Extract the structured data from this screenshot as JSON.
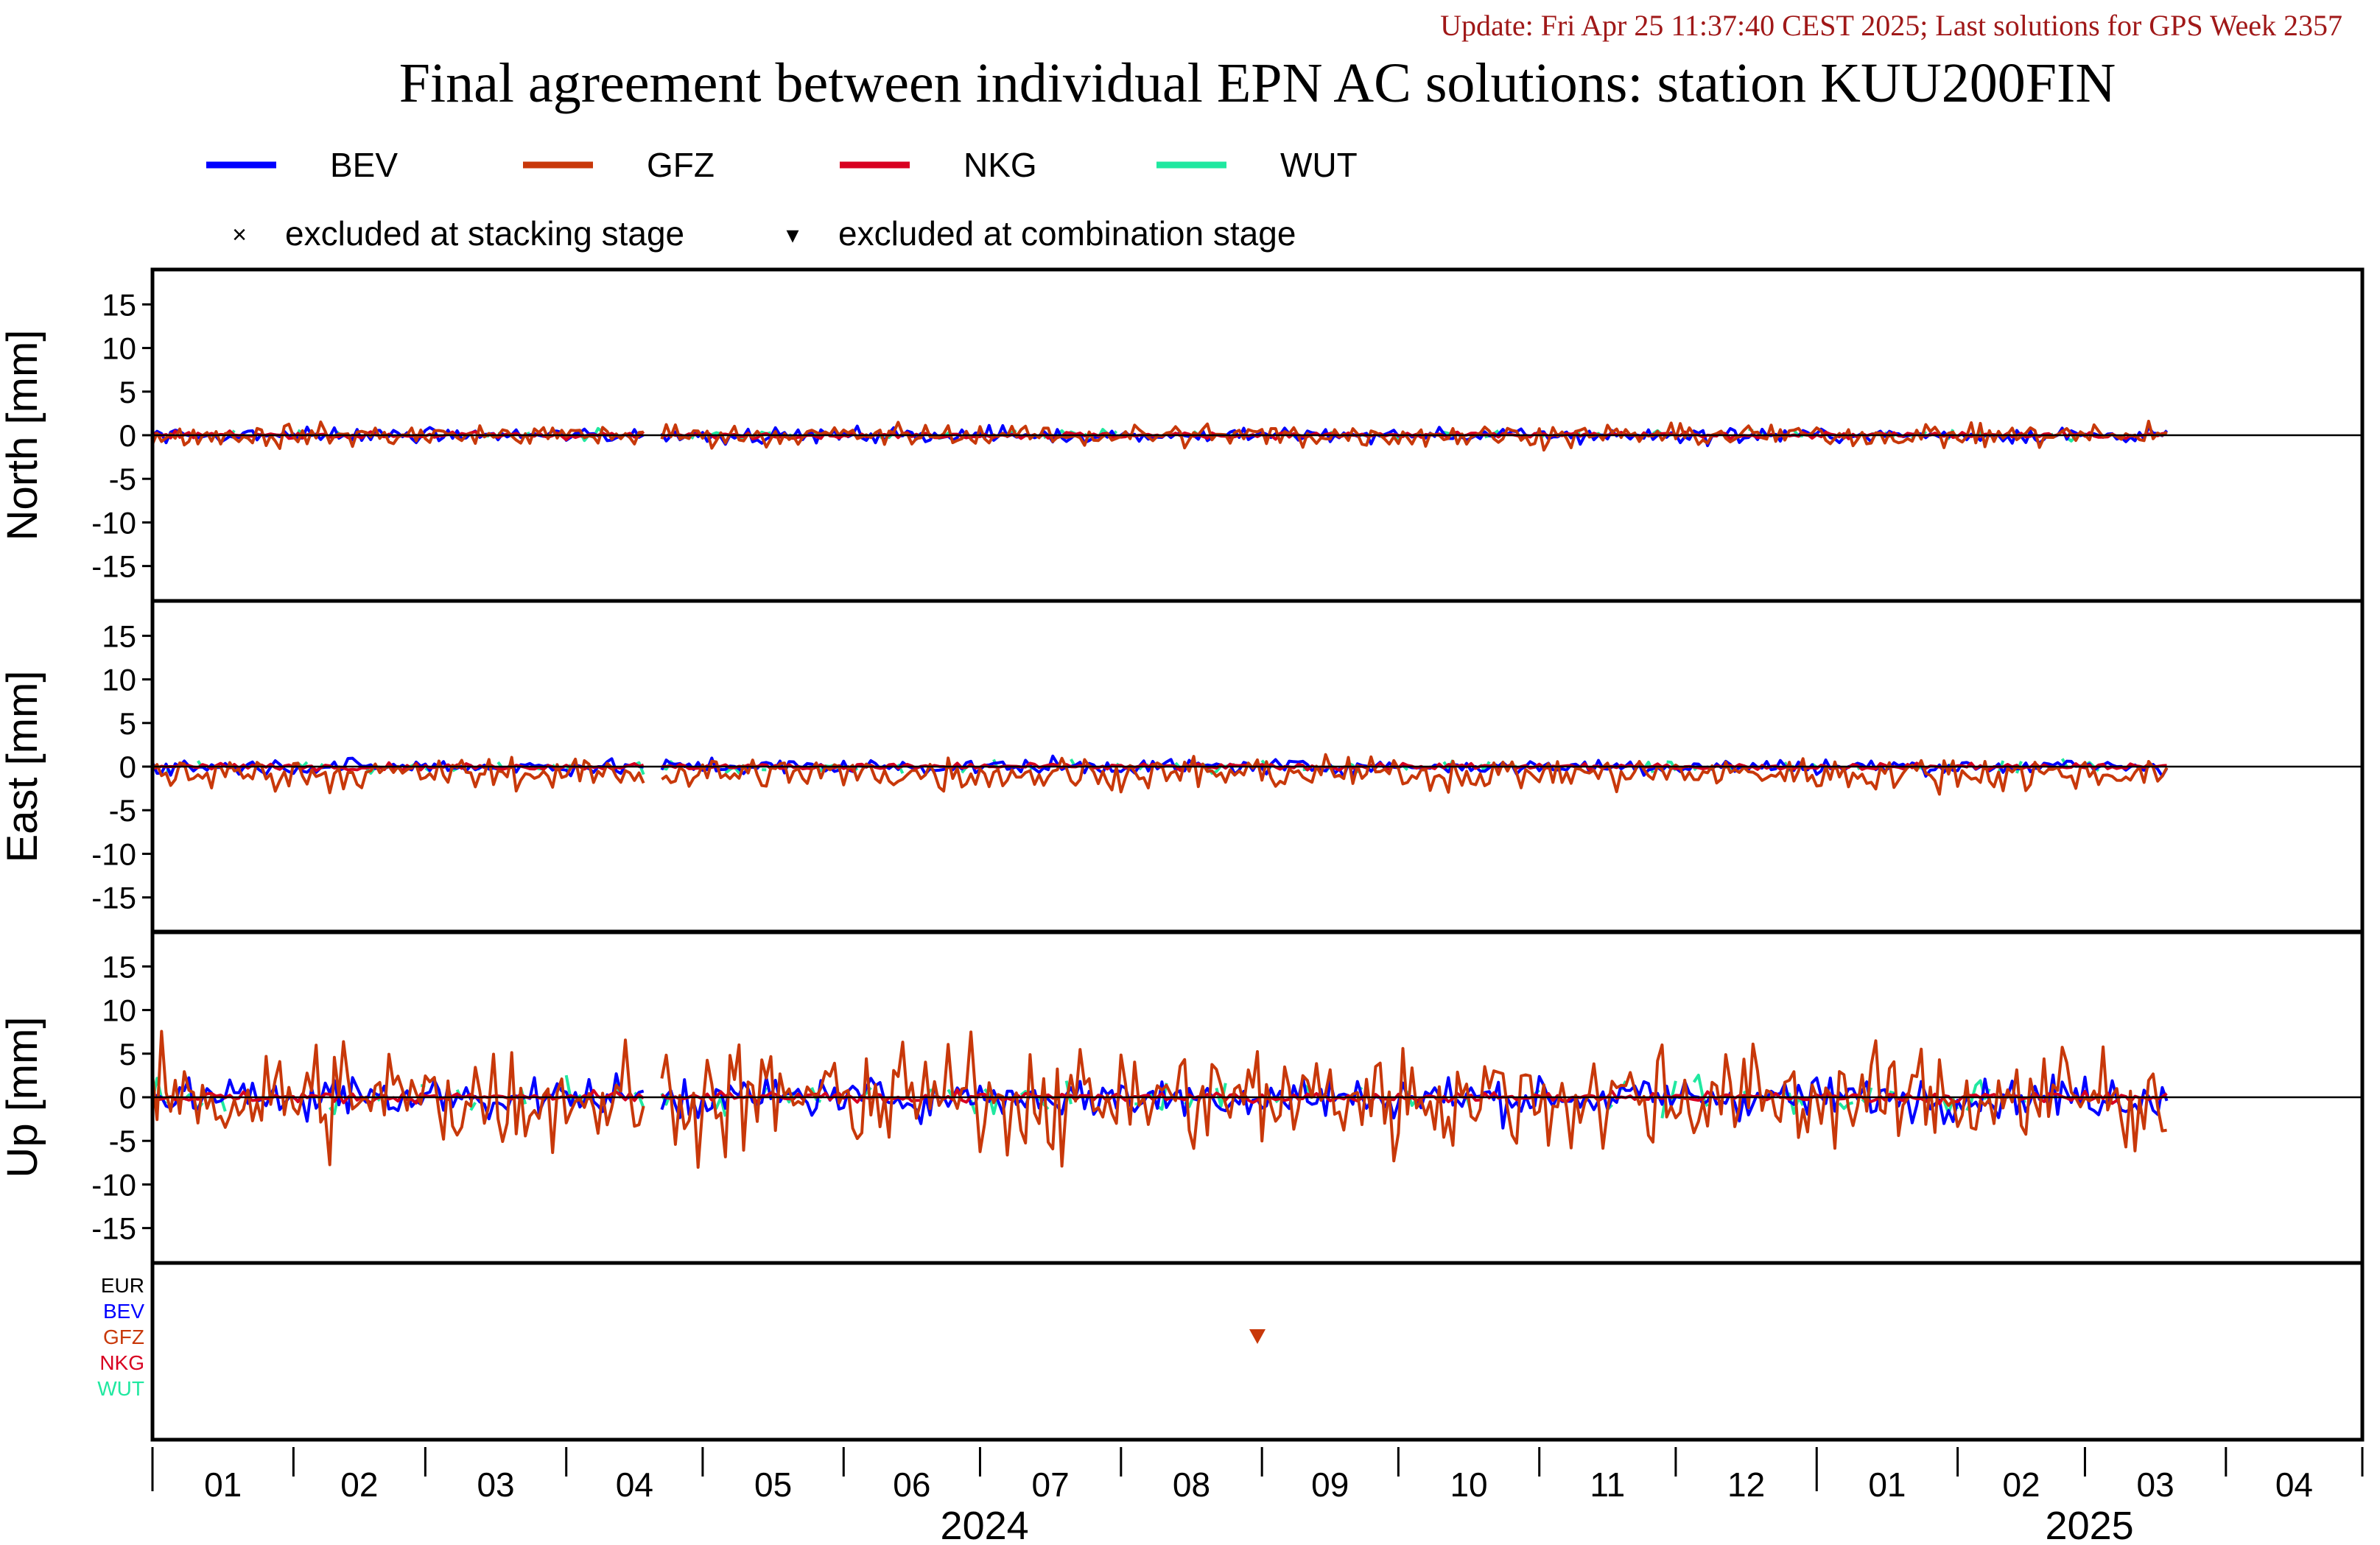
{
  "header": {
    "update_line": "Update: Fri Apr 25 11:37:40 CEST 2025; Last solutions for GPS Week 2357",
    "title": "Final agreement between individual EPN AC solutions: station KUU200FIN"
  },
  "colors": {
    "update_text": "#a01818",
    "BEV": "#0000ff",
    "GFZ": "#c8380a",
    "NKG": "#d80020",
    "WUT": "#20e8a0",
    "EUR": "#000000"
  },
  "legend": {
    "series": [
      {
        "name": "BEV",
        "color": "#0000ff"
      },
      {
        "name": "GFZ",
        "color": "#c8380a"
      },
      {
        "name": "NKG",
        "color": "#d80020"
      },
      {
        "name": "WUT",
        "color": "#20e8a0"
      }
    ],
    "markers": [
      {
        "symbol": "×",
        "label": "excluded at stacking stage"
      },
      {
        "symbol": "▾",
        "label": "excluded at combination stage"
      }
    ]
  },
  "chart_data": {
    "type": "line",
    "x_unit": "month",
    "x_range": [
      "2024-01-01",
      "2025-04-30"
    ],
    "month_ticks": [
      "01",
      "02",
      "03",
      "04",
      "05",
      "06",
      "07",
      "08",
      "09",
      "10",
      "11",
      "12",
      "01",
      "02",
      "03",
      "04"
    ],
    "years": [
      "2024",
      "2025"
    ],
    "panels": [
      {
        "ylabel": "North [mm]",
        "ylim": [
          -19,
          19
        ],
        "yticks": [
          15,
          10,
          5,
          0,
          -5,
          -10,
          -15
        ],
        "amplitude": {
          "BEV": 0.6,
          "GFZ": 0.9,
          "NKG": 0.25,
          "WUT": 0.5
        }
      },
      {
        "ylabel": "East [mm]",
        "ylim": [
          -19,
          19
        ],
        "yticks": [
          15,
          10,
          5,
          0,
          -5,
          -10,
          -15
        ],
        "amplitude": {
          "BEV": 0.6,
          "GFZ": 1.3,
          "NKG": 0.25,
          "WUT": 0.5
        },
        "offset": {
          "GFZ": -0.8
        }
      },
      {
        "ylabel": "Up [mm]",
        "ylim": [
          -19,
          19
        ],
        "yticks": [
          15,
          10,
          5,
          0,
          -5,
          -10,
          -15
        ],
        "amplitude": {
          "BEV": 1.6,
          "GFZ": 4.2,
          "NKG": 0.4,
          "WUT": 1.4
        }
      }
    ],
    "series_order": [
      "WUT",
      "BEV",
      "NKG",
      "GFZ"
    ],
    "gaps": [
      {
        "start": "2024-04-19",
        "end": "2024-04-21"
      }
    ],
    "excluded_panel": {
      "labels": [
        {
          "name": "EUR",
          "color": "#000000"
        },
        {
          "name": "BEV",
          "color": "#0000ff"
        },
        {
          "name": "GFZ",
          "color": "#c8380a"
        },
        {
          "name": "NKG",
          "color": "#d80020"
        },
        {
          "name": "WUT",
          "color": "#20e8a0"
        }
      ],
      "events": [
        {
          "date": "2024-08-31",
          "ac": "GFZ",
          "type": "combination"
        }
      ]
    }
  }
}
